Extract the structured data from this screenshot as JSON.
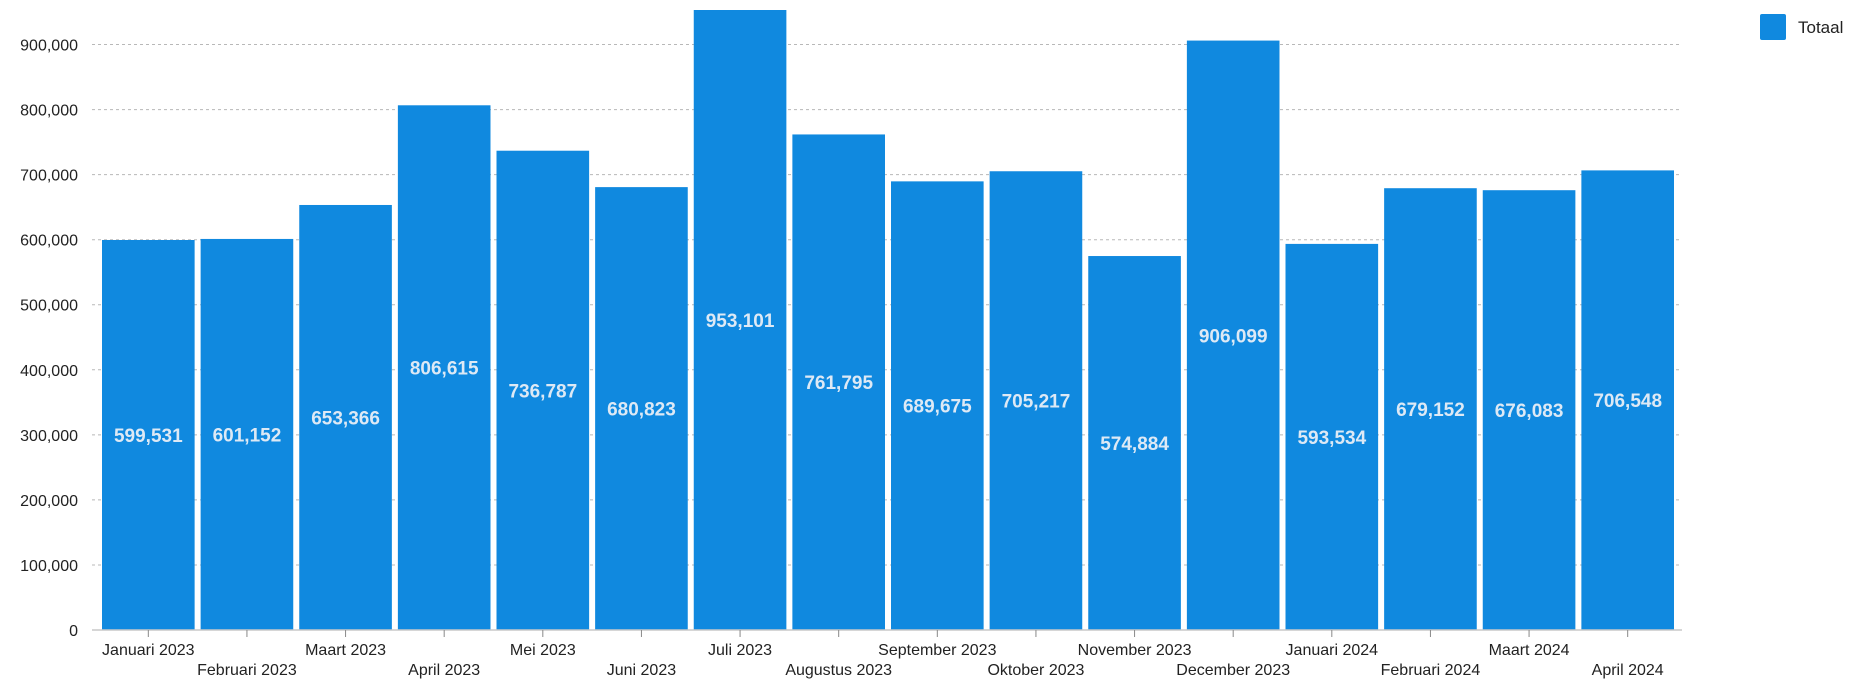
{
  "chart_data": {
    "type": "bar",
    "categories": [
      "Januari 2023",
      "Februari 2023",
      "Maart 2023",
      "April 2023",
      "Mei 2023",
      "Juni 2023",
      "Juli 2023",
      "Augustus 2023",
      "September 2023",
      "Oktober 2023",
      "November 2023",
      "December 2023",
      "Januari 2024",
      "Februari 2024",
      "Maart 2024",
      "April 2024"
    ],
    "series": [
      {
        "name": "Totaal",
        "color": "#1089df",
        "values": [
          599531,
          601152,
          653366,
          806615,
          736787,
          680823,
          953101,
          761795,
          689675,
          705217,
          574884,
          906099,
          593534,
          679152,
          676083,
          706548
        ],
        "value_labels": [
          "599,531",
          "601,152",
          "653,366",
          "806,615",
          "736,787",
          "680,823",
          "953,101",
          "761,795",
          "689,675",
          "705,217",
          "574,884",
          "906,099",
          "593,534",
          "679,152",
          "676,083",
          "706,548"
        ]
      }
    ],
    "title": "",
    "xlabel": "",
    "ylabel": "",
    "ylim": [
      0,
      953101
    ],
    "y_ticks": [
      0,
      100000,
      200000,
      300000,
      400000,
      500000,
      600000,
      700000,
      800000,
      900000
    ],
    "y_tick_labels": [
      "0",
      "100,000",
      "200,000",
      "300,000",
      "400,000",
      "500,000",
      "600,000",
      "700,000",
      "800,000",
      "900,000"
    ],
    "grid": true,
    "grid_style": "dotted horizontal",
    "legend": {
      "position": "top-right",
      "entries": [
        "Totaal"
      ]
    },
    "data_labels": "inside bars, centered",
    "x_label_layout": "staggered two rows"
  }
}
